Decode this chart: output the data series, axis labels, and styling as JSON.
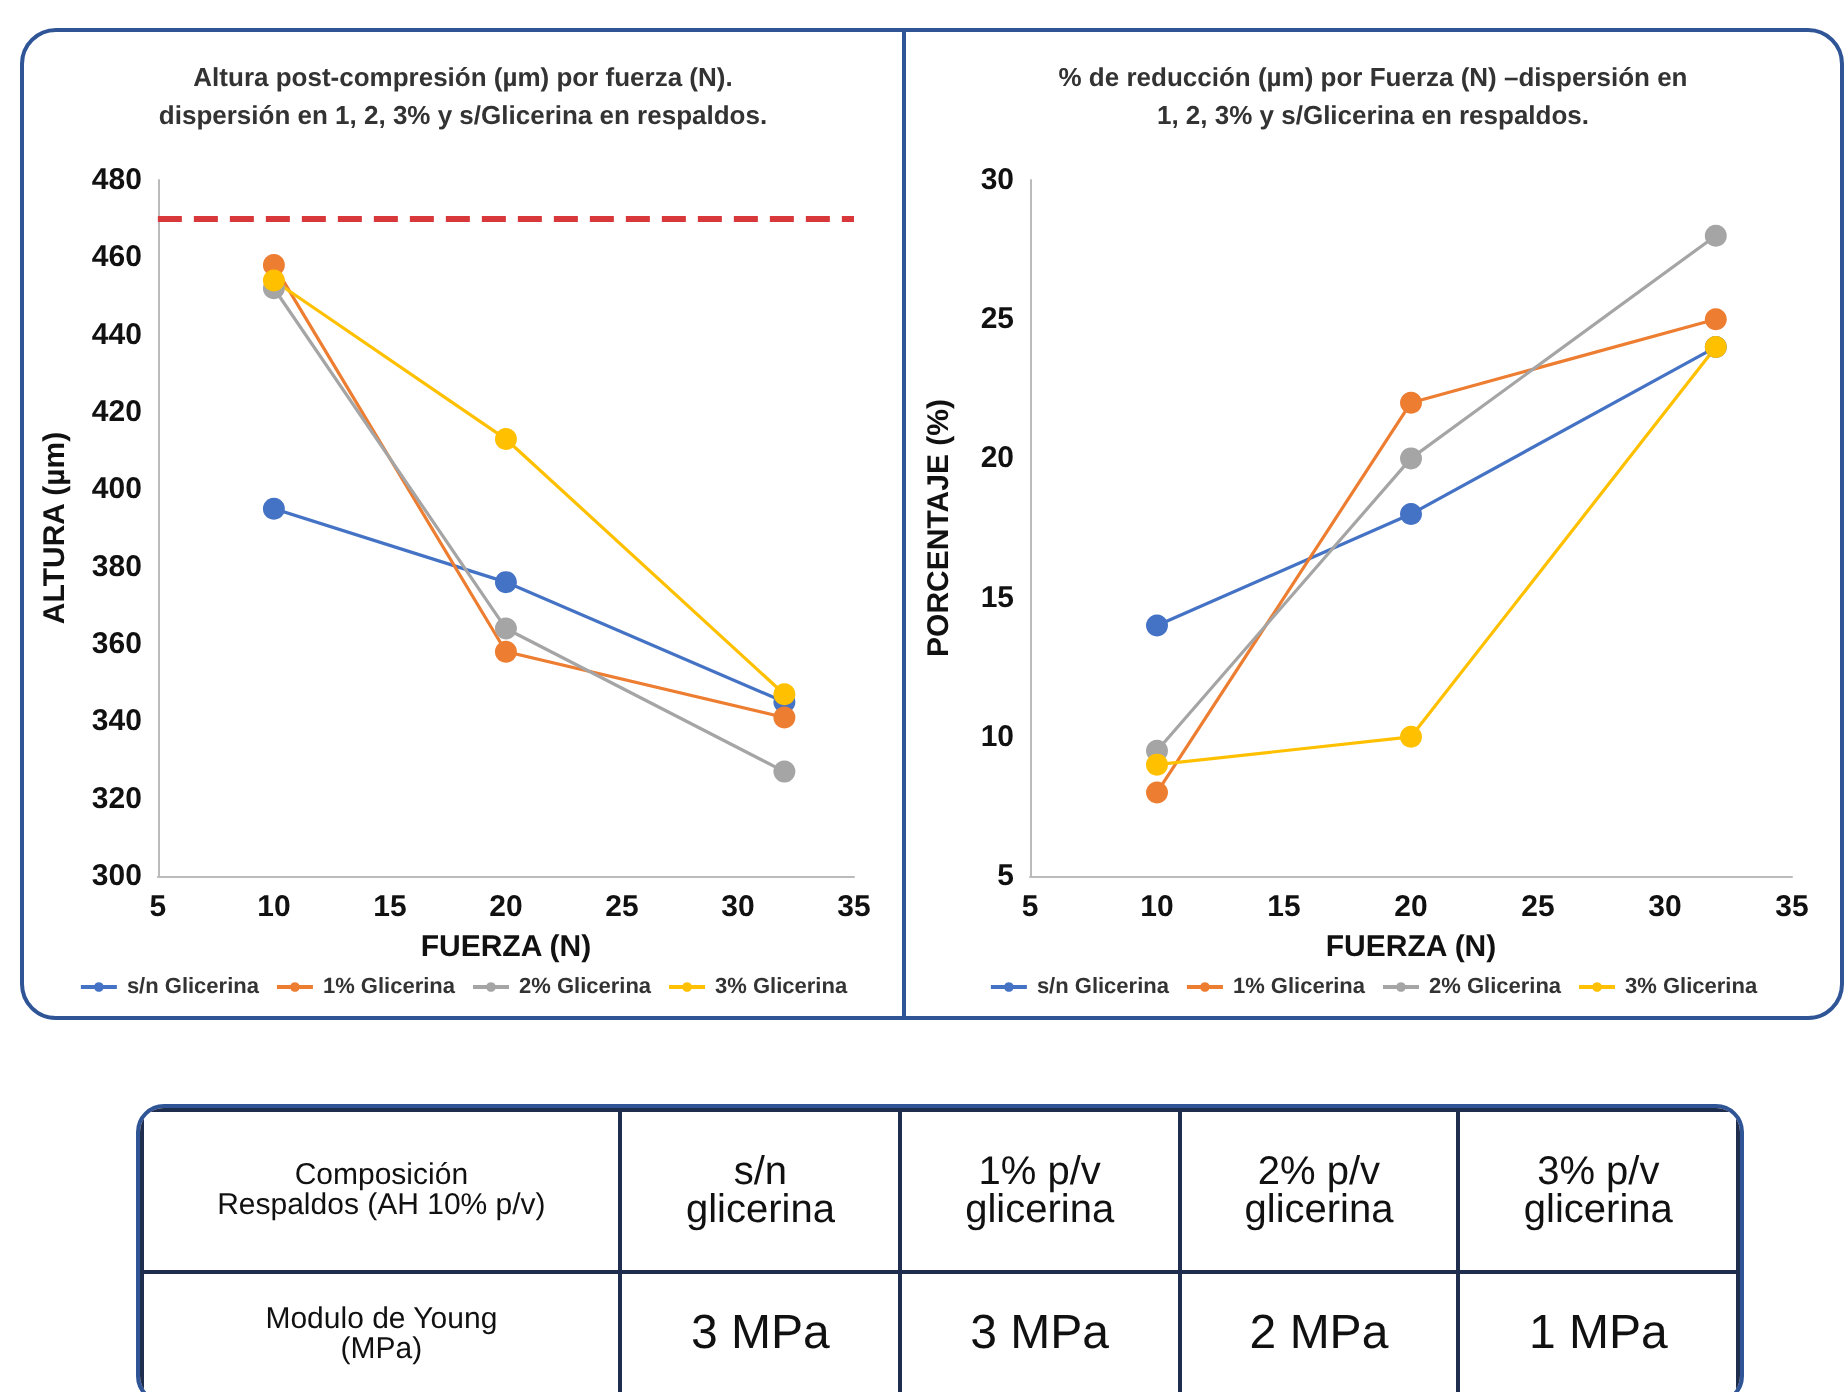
{
  "chart_data": [
    {
      "type": "line",
      "title": "Altura post-compresión (µm) por fuerza (N).\ndispersión en 1, 2, 3% y s/Glicerina en respaldos.",
      "xlabel": "FUERZA (N)",
      "ylabel": "ALTURA (µm)",
      "x": [
        10,
        20,
        32
      ],
      "series": [
        {
          "name": "s/n Glicerina",
          "color": "#4472c4",
          "values": [
            395,
            376,
            345
          ]
        },
        {
          "name": "1% Glicerina",
          "color": "#ed7d31",
          "values": [
            458,
            358,
            341
          ]
        },
        {
          "name": "2% Glicerina",
          "color": "#a5a5a5",
          "values": [
            452,
            364,
            327
          ]
        },
        {
          "name": "3% Glicerina",
          "color": "#ffc000",
          "values": [
            454,
            413,
            347
          ]
        }
      ],
      "xlim": [
        5,
        35
      ],
      "xticks": [
        5,
        10,
        15,
        20,
        25,
        30,
        35
      ],
      "ylim": [
        300,
        480
      ],
      "yticks": [
        300,
        320,
        340,
        360,
        380,
        400,
        420,
        440,
        460,
        480
      ],
      "ref_lines": [
        {
          "axis": "y",
          "value": 470,
          "color": "#d9383a",
          "line_style": "dashed"
        }
      ],
      "legend": "bottom",
      "marker": "circle",
      "line_style": "solid",
      "grid": false
    },
    {
      "type": "line",
      "title": "% de reducción (µm) por Fuerza (N) –dispersión en\n1, 2, 3% y s/Glicerina en respaldos.",
      "xlabel": "FUERZA (N)",
      "ylabel": "PORCENTAJE (%)",
      "x": [
        10,
        20,
        32
      ],
      "series": [
        {
          "name": "s/n Glicerina",
          "color": "#4472c4",
          "values": [
            14,
            18,
            24
          ]
        },
        {
          "name": "1% Glicerina",
          "color": "#ed7d31",
          "values": [
            8,
            22,
            25
          ]
        },
        {
          "name": "2% Glicerina",
          "color": "#a5a5a5",
          "values": [
            9.5,
            20,
            28
          ]
        },
        {
          "name": "3% Glicerina",
          "color": "#ffc000",
          "values": [
            9,
            10,
            24
          ]
        }
      ],
      "xlim": [
        5,
        35
      ],
      "xticks": [
        5,
        10,
        15,
        20,
        25,
        30,
        35
      ],
      "ylim": [
        5,
        30
      ],
      "yticks": [
        5,
        10,
        15,
        20,
        25,
        30
      ],
      "legend": "bottom",
      "marker": "circle",
      "line_style": "solid",
      "grid": false
    },
    {
      "type": "other",
      "annotations": [
        "Composición\nRespaldos (AH 10% p/v)",
        "s/n\nglicerina",
        "1% p/v\nglicerina",
        "2% p/v\nglicerina",
        "3% p/v\nglicerina",
        "Modulo de Young\n(MPa)",
        "3 MPa",
        "3 MPa",
        "2 MPa",
        "1 MPa"
      ]
    }
  ]
}
